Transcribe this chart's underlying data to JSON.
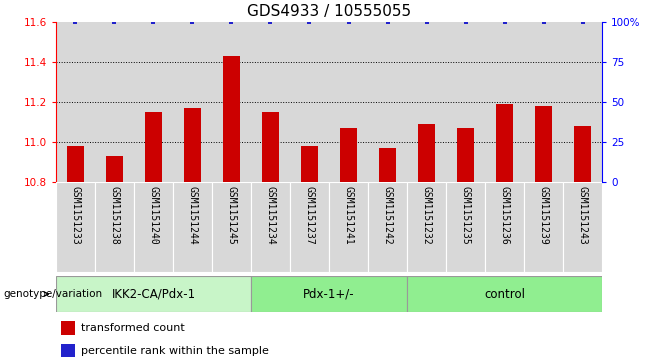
{
  "title": "GDS4933 / 10555055",
  "samples": [
    "GSM1151233",
    "GSM1151238",
    "GSM1151240",
    "GSM1151244",
    "GSM1151245",
    "GSM1151234",
    "GSM1151237",
    "GSM1151241",
    "GSM1151242",
    "GSM1151232",
    "GSM1151235",
    "GSM1151236",
    "GSM1151239",
    "GSM1151243"
  ],
  "bar_values": [
    10.98,
    10.93,
    11.15,
    11.17,
    11.43,
    11.15,
    10.98,
    11.07,
    10.97,
    11.09,
    11.07,
    11.19,
    11.18,
    11.08
  ],
  "ylim_left": [
    10.8,
    11.6
  ],
  "ylim_right": [
    0,
    100
  ],
  "yticks_left": [
    10.8,
    11.0,
    11.2,
    11.4,
    11.6
  ],
  "yticks_right": [
    0,
    25,
    50,
    75,
    100
  ],
  "groups": [
    {
      "label": "IKK2-CA/Pdx-1",
      "start": 0,
      "end": 5
    },
    {
      "label": "Pdx-1+/-",
      "start": 5,
      "end": 9
    },
    {
      "label": "control",
      "start": 9,
      "end": 14
    }
  ],
  "group_colors": [
    "#c8f5c8",
    "#90ee90",
    "#90ee90"
  ],
  "bar_color": "#cc0000",
  "dot_color": "#2222cc",
  "xlabel_group": "genotype/variation",
  "legend_bar": "transformed count",
  "legend_dot": "percentile rank within the sample",
  "title_fontsize": 11,
  "tick_fontsize": 7.5,
  "sample_fontsize": 7,
  "group_fontsize": 8.5,
  "legend_fontsize": 8
}
